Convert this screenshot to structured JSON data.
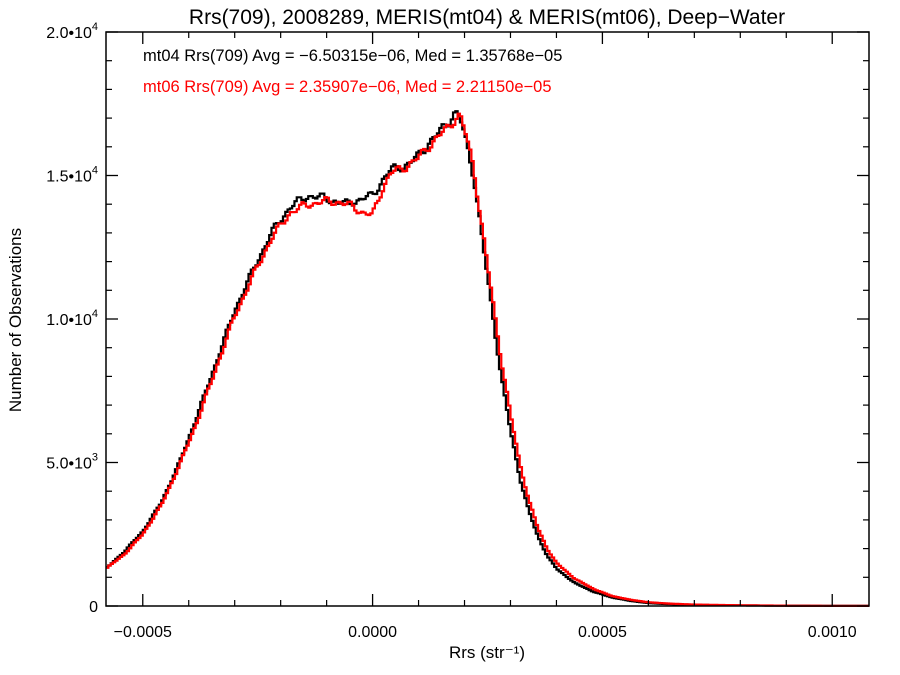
{
  "chart_data": {
    "type": "line",
    "title": "Rrs(709), 2008289, MERIS(mt04) & MERIS(mt06), Deep−Water",
    "xlabel": "Rrs (str⁻¹)",
    "ylabel": "Number of Observations",
    "xlim": [
      -0.00058,
      0.00108
    ],
    "ylim": [
      0,
      20000
    ],
    "x_ticks": [
      {
        "value": -0.0005,
        "label": "−0.0005"
      },
      {
        "value": 0.0,
        "label": "0.0000"
      },
      {
        "value": 0.0005,
        "label": "0.0005"
      },
      {
        "value": 0.001,
        "label": "0.0010"
      }
    ],
    "y_ticks": [
      {
        "value": 0,
        "mantissa": "0",
        "exp": ""
      },
      {
        "value": 5000,
        "mantissa": "5.0•10",
        "exp": "3"
      },
      {
        "value": 10000,
        "mantissa": "1.0•10",
        "exp": "4"
      },
      {
        "value": 15000,
        "mantissa": "1.5•10",
        "exp": "4"
      },
      {
        "value": 20000,
        "mantissa": "2.0•10",
        "exp": "4"
      }
    ],
    "grid": false,
    "annotations": [
      {
        "text": "mt04 Rrs(709) Avg = −6.50315e−06, Med = 1.35768e−05",
        "color": "#000000"
      },
      {
        "text": "mt06 Rrs(709) Avg = 2.35907e−06, Med = 2.21150e−05",
        "color": "#ff0000"
      }
    ],
    "series": [
      {
        "color": "#000000",
        "x": [
          -0.00058,
          -0.00054,
          -0.0005,
          -0.00046,
          -0.00042,
          -0.00038,
          -0.00034,
          -0.0003,
          -0.00026,
          -0.00022,
          -0.00018,
          -0.00014,
          -0.0001,
          -8e-05,
          -6e-05,
          -4e-05,
          -2e-05,
          0.0,
          2e-05,
          4e-05,
          6e-05,
          8e-05,
          0.0001,
          0.00012,
          0.00014,
          0.00016,
          0.00018,
          0.00019,
          0.0002,
          0.00022,
          0.00024,
          0.00026,
          0.00028,
          0.0003,
          0.00032,
          0.00034,
          0.00036,
          0.00038,
          0.0004,
          0.00044,
          0.00048,
          0.00052,
          0.00056,
          0.0006,
          0.00065,
          0.0007,
          0.0008,
          0.0009,
          0.001,
          0.00108
        ],
        "y": [
          1300,
          1900,
          2600,
          3600,
          5000,
          6700,
          8500,
          10300,
          11700,
          13000,
          13900,
          14300,
          14200,
          14100,
          14000,
          14100,
          14200,
          14300,
          14800,
          15200,
          15300,
          15400,
          15700,
          16100,
          16400,
          16800,
          17200,
          17000,
          16400,
          15000,
          12600,
          10300,
          8000,
          6100,
          4500,
          3300,
          2400,
          1750,
          1300,
          800,
          500,
          300,
          180,
          100,
          60,
          40,
          20,
          10,
          5,
          3
        ]
      },
      {
        "color": "#ff0000",
        "x": [
          -0.00058,
          -0.00054,
          -0.0005,
          -0.00046,
          -0.00042,
          -0.00038,
          -0.00034,
          -0.0003,
          -0.00026,
          -0.00022,
          -0.00018,
          -0.00014,
          -0.0001,
          -8e-05,
          -6e-05,
          -4e-05,
          -2e-05,
          0.0,
          2e-05,
          4e-05,
          6e-05,
          8e-05,
          0.0001,
          0.00012,
          0.00014,
          0.00016,
          0.00018,
          0.00019,
          0.0002,
          0.00022,
          0.00024,
          0.00026,
          0.00028,
          0.0003,
          0.00032,
          0.00034,
          0.00036,
          0.00038,
          0.0004,
          0.00044,
          0.00048,
          0.00052,
          0.00056,
          0.0006,
          0.00065,
          0.0007,
          0.0008,
          0.0009,
          0.001,
          0.00108
        ],
        "y": [
          1300,
          1800,
          2500,
          3500,
          4900,
          6500,
          8300,
          10100,
          11500,
          12800,
          13700,
          14000,
          14100,
          14100,
          14000,
          13900,
          13700,
          13600,
          14500,
          15100,
          15200,
          15400,
          15600,
          16000,
          16300,
          16600,
          17000,
          17100,
          16600,
          15300,
          13000,
          10800,
          8600,
          6700,
          5000,
          3700,
          2700,
          2000,
          1500,
          950,
          600,
          350,
          220,
          130,
          80,
          50,
          25,
          12,
          6,
          3
        ]
      }
    ]
  }
}
